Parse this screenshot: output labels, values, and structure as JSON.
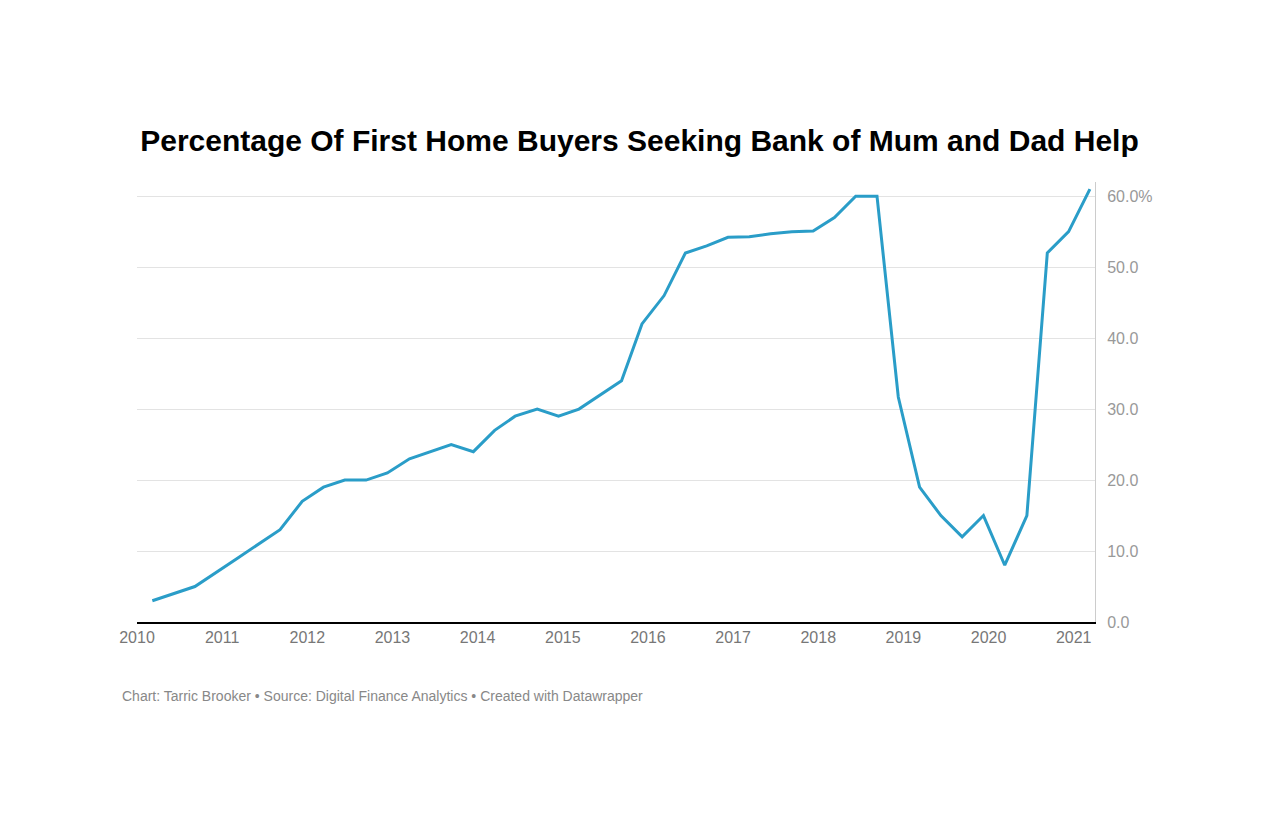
{
  "chart_data": {
    "type": "line",
    "title": "Percentage Of First Home Buyers Seeking Bank of Mum and Dad Help",
    "caption": "Chart: Tarric Brooker • Source: Digital Finance Analytics • Created with Datawrapper",
    "x": [
      2010.18,
      2010.68,
      2011.18,
      2011.68,
      2011.94,
      2012.19,
      2012.44,
      2012.69,
      2012.94,
      2013.2,
      2013.69,
      2013.95,
      2014.2,
      2014.44,
      2014.7,
      2014.95,
      2015.19,
      2015.69,
      2015.93,
      2016.19,
      2016.44,
      2016.69,
      2016.94,
      2017.19,
      2017.44,
      2017.69,
      2017.94,
      2018.19,
      2018.44,
      2018.69,
      2018.94,
      2019.19,
      2019.44,
      2019.69,
      2019.94,
      2020.19,
      2020.45,
      2020.69,
      2020.94,
      2021.19
    ],
    "values": [
      3,
      5,
      9,
      13,
      17,
      19,
      20,
      20,
      21,
      23,
      25,
      24,
      27,
      29,
      30,
      29,
      30,
      34,
      42,
      46,
      52,
      53,
      54.2,
      54.3,
      54.7,
      55,
      55.1,
      57,
      60,
      60,
      31.7,
      19,
      15,
      12,
      15,
      8,
      15,
      52,
      55,
      61
    ],
    "color": "#2a9dc8",
    "xlim": [
      2010,
      2021.25
    ],
    "xticks": [
      2010,
      2011,
      2012,
      2013,
      2014,
      2015,
      2016,
      2017,
      2018,
      2019,
      2020,
      2021
    ],
    "ylim": [
      0,
      62
    ],
    "yticks": [
      {
        "value": 0,
        "label": "0.0"
      },
      {
        "value": 10,
        "label": "10.0"
      },
      {
        "value": 20,
        "label": "20.0"
      },
      {
        "value": 30,
        "label": "30.0"
      },
      {
        "value": 40,
        "label": "40.0"
      },
      {
        "value": 50,
        "label": "50.0"
      },
      {
        "value": 60,
        "label": "60.0%"
      }
    ],
    "grid": true
  }
}
